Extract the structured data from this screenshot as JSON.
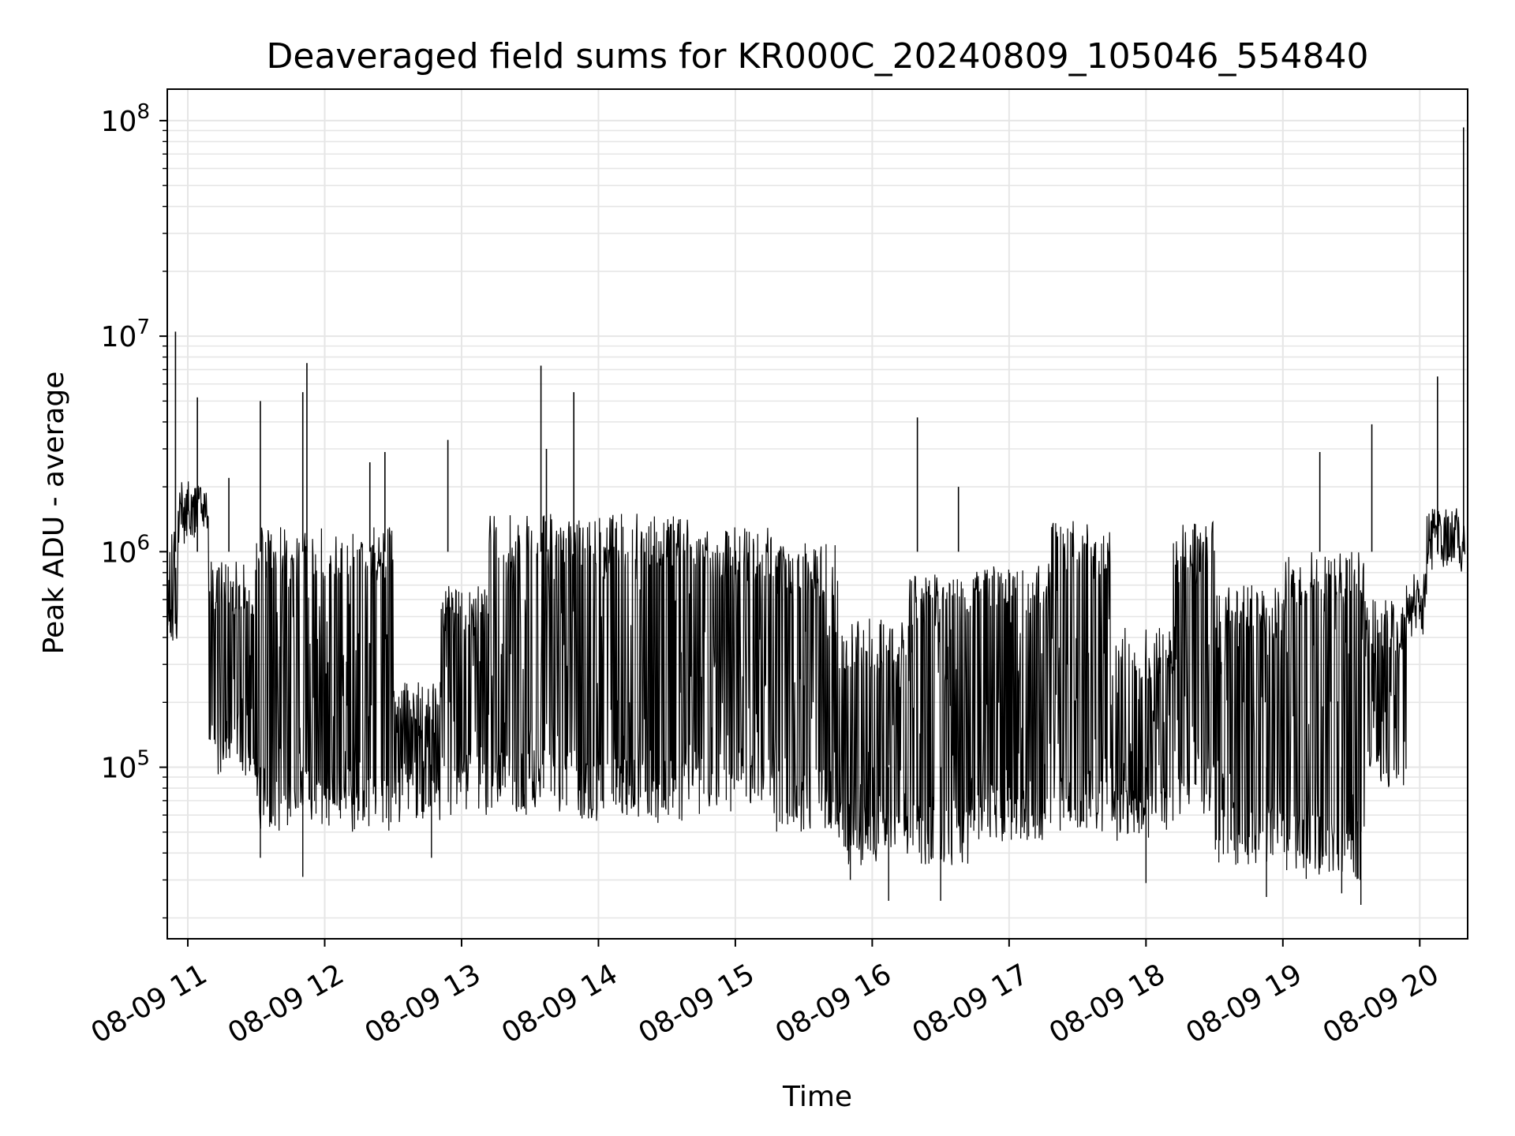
{
  "chart_data": {
    "type": "line",
    "title": "Deaveraged field sums for KR000C_20240809_105046_554840",
    "xlabel": "Time",
    "ylabel": "Peak ADU - average",
    "yscale": "log",
    "ylim": [
      16000,
      140000000
    ],
    "xlim_hours": [
      10.85,
      20.35
    ],
    "grid": true,
    "series_color": "#000000",
    "grid_color": "#e6e6e6",
    "x_ticks": [
      {
        "hour": 11,
        "label": "08-09 11"
      },
      {
        "hour": 12,
        "label": "08-09 12"
      },
      {
        "hour": 13,
        "label": "08-09 13"
      },
      {
        "hour": 14,
        "label": "08-09 14"
      },
      {
        "hour": 15,
        "label": "08-09 15"
      },
      {
        "hour": 16,
        "label": "08-09 16"
      },
      {
        "hour": 17,
        "label": "08-09 17"
      },
      {
        "hour": 18,
        "label": "08-09 18"
      },
      {
        "hour": 19,
        "label": "08-09 19"
      },
      {
        "hour": 20,
        "label": "08-09 20"
      }
    ],
    "y_ticks": [
      {
        "value": 100000,
        "base": "10",
        "exp": "5"
      },
      {
        "value": 1000000,
        "base": "10",
        "exp": "6"
      },
      {
        "value": 10000000,
        "base": "10",
        "exp": "7"
      },
      {
        "value": 100000000,
        "base": "10",
        "exp": "8"
      }
    ],
    "baseline_segments": [
      {
        "t0": 10.85,
        "t1": 10.93,
        "low": 350000,
        "high": 1300000
      },
      {
        "t0": 10.93,
        "t1": 11.15,
        "low": 1000000,
        "high": 2200000
      },
      {
        "t0": 11.15,
        "t1": 11.5,
        "low": 90000,
        "high": 900000
      },
      {
        "t0": 11.5,
        "t1": 12.5,
        "low": 50000,
        "high": 1300000
      },
      {
        "t0": 12.5,
        "t1": 12.85,
        "low": 55000,
        "high": 250000
      },
      {
        "t0": 12.85,
        "t1": 13.2,
        "low": 60000,
        "high": 700000
      },
      {
        "t0": 13.2,
        "t1": 13.85,
        "low": 60000,
        "high": 1500000
      },
      {
        "t0": 13.85,
        "t1": 14.65,
        "low": 55000,
        "high": 1500000
      },
      {
        "t0": 14.65,
        "t1": 15.3,
        "low": 60000,
        "high": 1300000
      },
      {
        "t0": 15.3,
        "t1": 15.75,
        "low": 50000,
        "high": 1100000
      },
      {
        "t0": 15.75,
        "t1": 16.25,
        "low": 35000,
        "high": 500000
      },
      {
        "t0": 16.25,
        "t1": 16.7,
        "low": 35000,
        "high": 800000
      },
      {
        "t0": 16.7,
        "t1": 17.3,
        "low": 45000,
        "high": 900000
      },
      {
        "t0": 17.3,
        "t1": 17.75,
        "low": 50000,
        "high": 1400000
      },
      {
        "t0": 17.75,
        "t1": 18.2,
        "low": 45000,
        "high": 450000
      },
      {
        "t0": 18.2,
        "t1": 18.5,
        "low": 60000,
        "high": 1400000
      },
      {
        "t0": 18.5,
        "t1": 19.0,
        "low": 35000,
        "high": 700000
      },
      {
        "t0": 19.0,
        "t1": 19.6,
        "low": 30000,
        "high": 1000000
      },
      {
        "t0": 19.6,
        "t1": 19.9,
        "low": 80000,
        "high": 600000
      },
      {
        "t0": 19.9,
        "t1": 20.05,
        "low": 400000,
        "high": 800000
      },
      {
        "t0": 20.05,
        "t1": 20.33,
        "low": 800000,
        "high": 1600000
      }
    ],
    "spikes": [
      {
        "t": 10.91,
        "value": 10500000
      },
      {
        "t": 11.07,
        "value": 5200000
      },
      {
        "t": 11.3,
        "value": 2200000
      },
      {
        "t": 11.53,
        "value": 5000000
      },
      {
        "t": 11.84,
        "value": 5500000
      },
      {
        "t": 11.87,
        "value": 7500000
      },
      {
        "t": 12.33,
        "value": 2600000
      },
      {
        "t": 12.44,
        "value": 2900000
      },
      {
        "t": 12.9,
        "value": 3300000
      },
      {
        "t": 13.58,
        "value": 7300000
      },
      {
        "t": 13.62,
        "value": 3000000
      },
      {
        "t": 13.82,
        "value": 5500000
      },
      {
        "t": 16.33,
        "value": 4200000
      },
      {
        "t": 16.63,
        "value": 2000000
      },
      {
        "t": 19.27,
        "value": 2900000
      },
      {
        "t": 19.65,
        "value": 3900000
      },
      {
        "t": 20.13,
        "value": 6500000
      },
      {
        "t": 20.32,
        "value": 93000000
      }
    ],
    "dips": [
      {
        "t": 11.53,
        "value": 38000
      },
      {
        "t": 11.84,
        "value": 31000
      },
      {
        "t": 12.78,
        "value": 38000
      },
      {
        "t": 15.84,
        "value": 30000
      },
      {
        "t": 16.12,
        "value": 24000
      },
      {
        "t": 16.5,
        "value": 24000
      },
      {
        "t": 18.0,
        "value": 29000
      },
      {
        "t": 18.88,
        "value": 25000
      },
      {
        "t": 19.43,
        "value": 26000
      },
      {
        "t": 19.57,
        "value": 23000
      }
    ]
  }
}
